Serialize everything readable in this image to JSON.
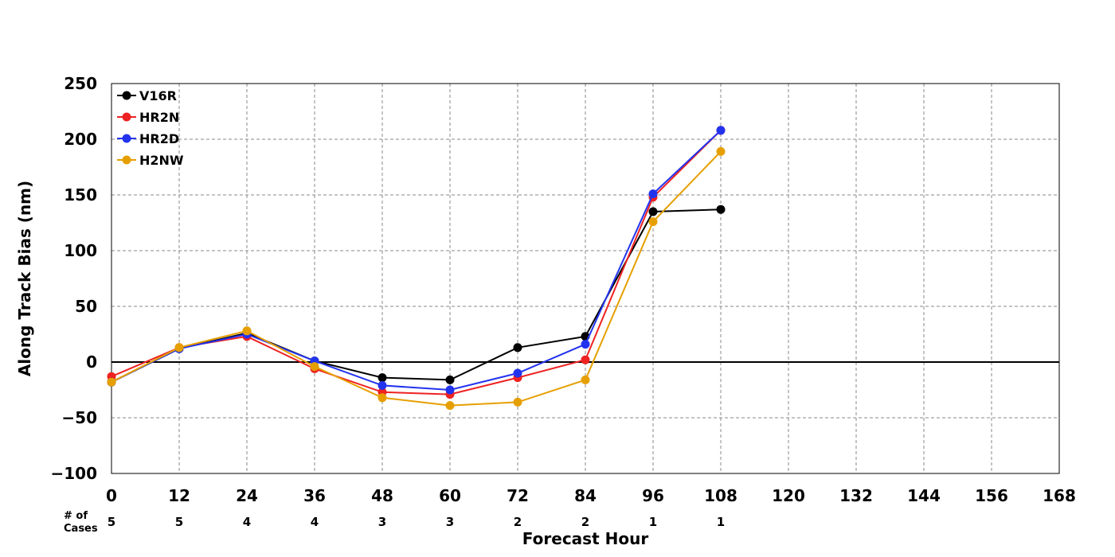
{
  "chart_data": {
    "type": "line",
    "title": "",
    "xlabel": "Forecast Hour",
    "ylabel": "Along Track Bias (nm)",
    "xlim": [
      0,
      168
    ],
    "ylim": [
      -100,
      250
    ],
    "x_ticks": [
      "0",
      "12",
      "24",
      "36",
      "48",
      "60",
      "72",
      "84",
      "96",
      "108",
      "120",
      "132",
      "144",
      "156",
      "168"
    ],
    "y_ticks": [
      "250",
      "200",
      "150",
      "100",
      "50",
      "0",
      "−50",
      "−100"
    ],
    "x_tick_values": [
      0,
      12,
      24,
      36,
      48,
      60,
      72,
      84,
      96,
      108,
      120,
      132,
      144,
      156,
      168
    ],
    "y_tick_values": [
      250,
      200,
      150,
      100,
      50,
      0,
      -50,
      -100
    ],
    "grid": true,
    "legend_position": "top-left",
    "x": [
      0,
      12,
      24,
      36,
      48,
      60,
      72,
      84,
      96,
      108
    ],
    "series": [
      {
        "name": "V16R",
        "color": "#000000",
        "values": [
          -18,
          12,
          26,
          1,
          -14,
          -16,
          13,
          23,
          135,
          137
        ]
      },
      {
        "name": "HR2N",
        "color": "#ee2222",
        "values": [
          -13,
          13,
          23,
          -6,
          -27,
          -29,
          -14,
          2,
          148,
          208
        ]
      },
      {
        "name": "HR2D",
        "color": "#2233ee",
        "values": [
          -18,
          12,
          25,
          1,
          -21,
          -25,
          -10,
          16,
          151,
          208
        ]
      },
      {
        "name": "H2NW",
        "color": "#e69f00",
        "values": [
          -18,
          13,
          28,
          -4,
          -32,
          -39,
          -36,
          -16,
          126,
          189
        ]
      }
    ],
    "cases_label_line1": "# of",
    "cases_label_line2": "Cases",
    "cases": [
      "5",
      "5",
      "4",
      "4",
      "3",
      "3",
      "2",
      "2",
      "1",
      "1"
    ]
  }
}
